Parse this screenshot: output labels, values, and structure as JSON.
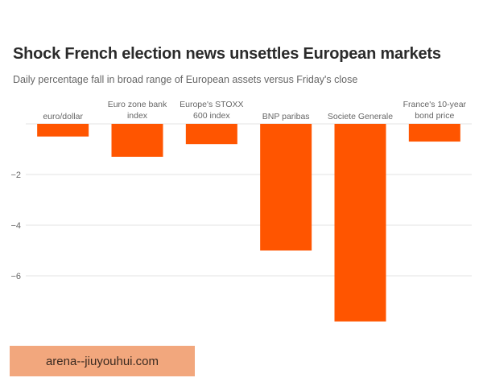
{
  "header": {
    "title": "Shock French election news unsettles European markets",
    "subtitle": "Daily percentage fall in broad range of European assets versus Friday's close"
  },
  "watermark": {
    "text": "arena--jiuyouhui.com"
  },
  "colors": {
    "bar": "#ff5500",
    "grid": "#e3e3e3",
    "axis_text": "#666666"
  },
  "chart_data": {
    "type": "bar",
    "categories": [
      [
        "euro/dollar"
      ],
      [
        "Euro zone bank",
        "index"
      ],
      [
        "Europe's STOXX",
        "600 index"
      ],
      [
        "BNP paribas"
      ],
      [
        "Societe Generale"
      ],
      [
        "France's 10-year",
        "bond price"
      ]
    ],
    "values": [
      -0.5,
      -1.3,
      -0.8,
      -5.0,
      -7.8,
      -0.7
    ],
    "ylim": [
      -8,
      0
    ],
    "yticks": [
      -2,
      -4,
      -6
    ],
    "grid": true,
    "legend": "none"
  }
}
